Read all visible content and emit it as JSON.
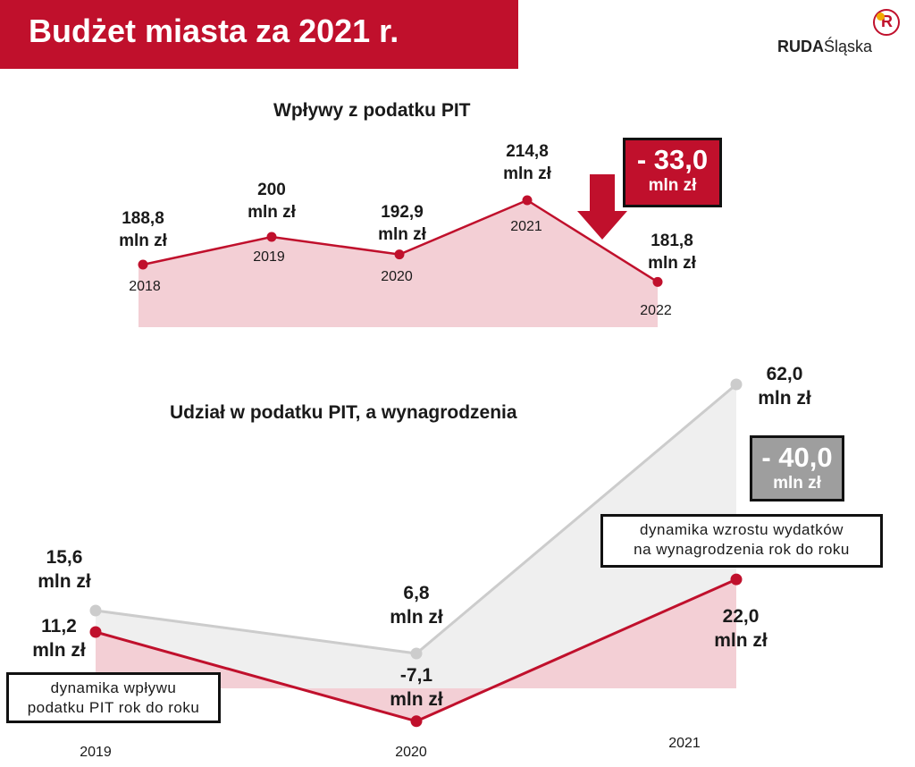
{
  "header": {
    "title": "Budżet miasta za 2021 r."
  },
  "logo": {
    "bold": "RUDA",
    "light": "Śląska"
  },
  "colors": {
    "brand": "#c0102c",
    "fill_red": "#f3cfd5",
    "gray_line": "#cccccc",
    "fill_gray": "#efefef",
    "gray_box": "#9e9e9e"
  },
  "chart_data": [
    {
      "type": "area",
      "title": "Wpływy z podatku PIT",
      "categories": [
        "2018",
        "2019",
        "2020",
        "2021",
        "2022"
      ],
      "series": [
        {
          "values": [
            188.8,
            200,
            192.9,
            214.8,
            181.8
          ]
        }
      ],
      "data_labels": [
        [
          "188,8",
          "mln zł"
        ],
        [
          "200",
          "mln zł"
        ],
        [
          "192,9",
          "mln zł"
        ],
        [
          "214,8",
          "mln zł"
        ],
        [
          "181,8",
          "mln zł"
        ]
      ],
      "annotation": {
        "value": "- 33,0",
        "unit": "mln zł",
        "arrow": "down"
      }
    },
    {
      "type": "area",
      "title": "Udział w podatku PIT, a wynagrodzenia",
      "categories": [
        "2019",
        "2020",
        "2021"
      ],
      "series": [
        {
          "name": "dynamika wzrostu wydatków na wynagrodzenia rok do roku",
          "values": [
            15.6,
            6.8,
            62.0
          ],
          "labels": [
            [
              "15,6",
              "mln zł"
            ],
            [
              "6,8",
              "mln zł"
            ],
            [
              "62,0",
              "mln zł"
            ]
          ]
        },
        {
          "name": "dynamika wpływu podatku PIT rok do roku",
          "values": [
            11.2,
            -7.1,
            22.0
          ],
          "labels": [
            [
              "11,2",
              "mln zł"
            ],
            [
              "-7,1",
              "mln zł"
            ],
            [
              "22,0",
              "mln zł"
            ]
          ]
        }
      ],
      "annotation": {
        "value": "- 40,0",
        "unit": "mln zł"
      }
    }
  ],
  "notes": {
    "salary": [
      "dynamika wzrostu wydatków",
      "na wynagrodzenia rok do roku"
    ],
    "pit": [
      "dynamika wpływu",
      "podatku PIT rok do roku"
    ]
  }
}
